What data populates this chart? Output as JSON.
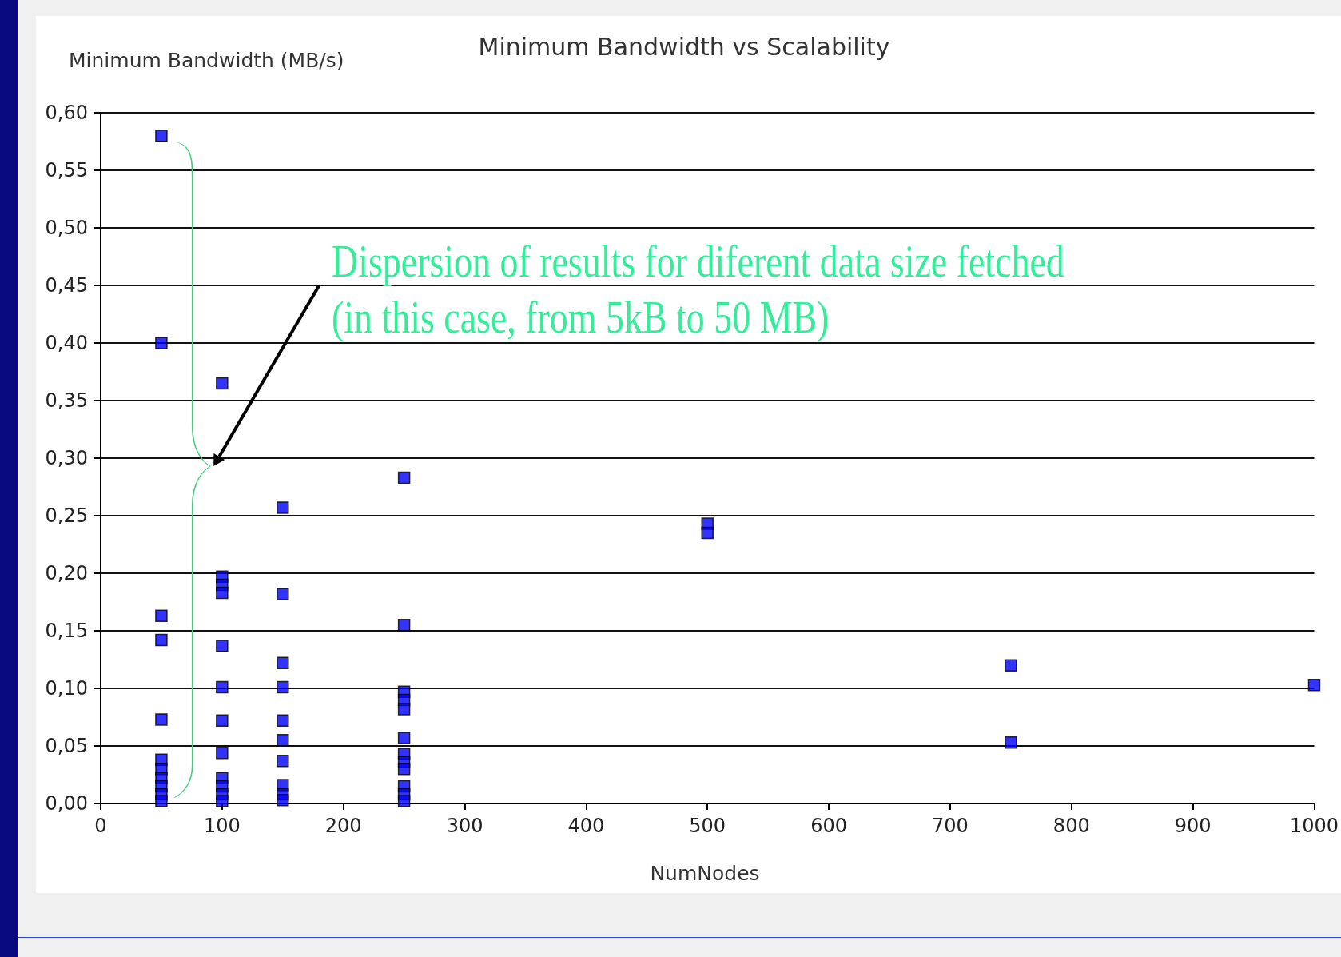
{
  "chart_data": {
    "type": "scatter",
    "title": "Minimum Bandwidth vs Scalability",
    "xlabel": "NumNodes",
    "ylabel": "Minimum Bandwidth (MB/s)",
    "annotations": [
      "Dispersion of results for diferent data size fetched\n(in this case, from 5kB to 50 MB)"
    ],
    "x": [
      50,
      50,
      50,
      50,
      50,
      50,
      50,
      50,
      50,
      50,
      50,
      100,
      100,
      100,
      100,
      100,
      100,
      100,
      100,
      100,
      100,
      100,
      100,
      150,
      150,
      150,
      150,
      150,
      150,
      150,
      150,
      150,
      150,
      250,
      250,
      250,
      250,
      250,
      250,
      250,
      250,
      250,
      250,
      250,
      250,
      500,
      500,
      750,
      750,
      1000
    ],
    "series": [
      {
        "color": "#0000ff",
        "values": [
          0.58,
          0.4,
          0.163,
          0.142,
          0.073,
          0.038,
          0.03,
          0.022,
          0.015,
          0.008,
          0.002,
          0.365,
          0.197,
          0.19,
          0.183,
          0.137,
          0.101,
          0.072,
          0.044,
          0.022,
          0.015,
          0.008,
          0.002,
          0.257,
          0.182,
          0.122,
          0.101,
          0.072,
          0.055,
          0.037,
          0.016,
          0.008,
          0.003,
          0.283,
          0.155,
          0.097,
          0.09,
          0.082,
          0.057,
          0.043,
          0.036,
          0.03,
          0.015,
          0.008,
          0.002,
          0.243,
          0.235,
          0.12,
          0.053,
          0.103
        ]
      }
    ],
    "xlim": [
      0,
      1000
    ],
    "xticks": [
      0,
      100,
      200,
      300,
      400,
      500,
      600,
      700,
      800,
      900,
      1000
    ],
    "ylim": [
      0,
      0.6
    ],
    "yticks": [
      {
        "value": 0,
        "label": "0,00"
      },
      {
        "value": 0.05,
        "label": "0,05"
      },
      {
        "value": 0.1,
        "label": "0,10"
      },
      {
        "value": 0.15,
        "label": "0,15"
      },
      {
        "value": 0.2,
        "label": "0,20"
      },
      {
        "value": 0.25,
        "label": "0,25"
      },
      {
        "value": 0.3,
        "label": "0,30"
      },
      {
        "value": 0.35,
        "label": "0,35"
      },
      {
        "value": 0.4,
        "label": "0,40"
      },
      {
        "value": 0.45,
        "label": "0,45"
      },
      {
        "value": 0.5,
        "label": "0,50"
      },
      {
        "value": 0.55,
        "label": "0,55"
      },
      {
        "value": 0.6,
        "label": "0,60"
      }
    ],
    "grid": "y",
    "marker": "square"
  }
}
